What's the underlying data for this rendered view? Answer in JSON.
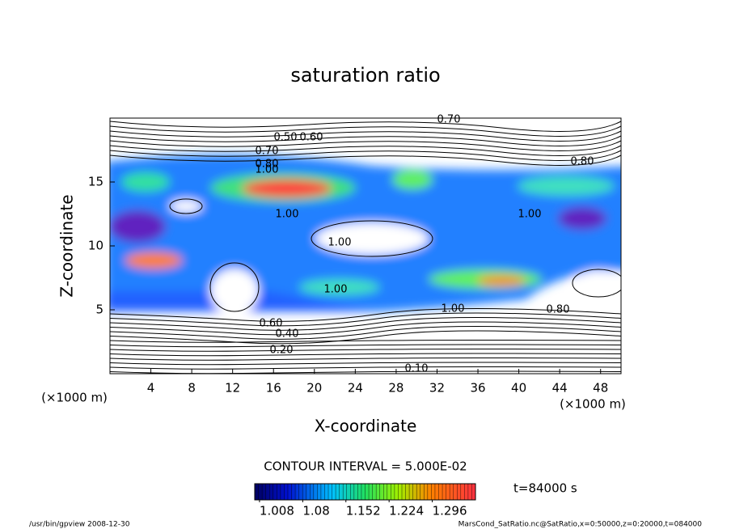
{
  "chart_data": {
    "type": "contour",
    "title": "saturation ratio",
    "xlabel": "X-coordinate",
    "ylabel": "Z-coordinate",
    "x_unit": "(×1000 m)",
    "y_unit": "(×1000 m)",
    "xlim": [
      0,
      50
    ],
    "ylim": [
      0,
      20
    ],
    "xticks": [
      4,
      8,
      12,
      16,
      20,
      24,
      28,
      32,
      36,
      40,
      44,
      48
    ],
    "yticks": [
      5,
      10,
      15
    ],
    "contour_labels": [
      "0.70",
      "0.50",
      "0.60",
      "0.70",
      "0.80",
      "1.00",
      "0.80",
      "1.00",
      "1.00",
      "1.00",
      "1.00",
      "1.00",
      "0.80",
      "0.60",
      "0.40",
      "0.20",
      "0.10"
    ],
    "contour_interval": "CONTOUR INTERVAL = 5.000E-02",
    "colorbar": {
      "lim": [
        1.0,
        1.368
      ],
      "ticks": [
        1.008,
        1.08,
        1.152,
        1.224,
        1.296
      ]
    },
    "time_label": "t=84000 s",
    "footer_left": "/usr/bin/gpview  2008-12-30",
    "footer_right": "MarsCond_SatRatio.nc@SatRatio,x=0:50000,z=0:20000,t=084000"
  }
}
